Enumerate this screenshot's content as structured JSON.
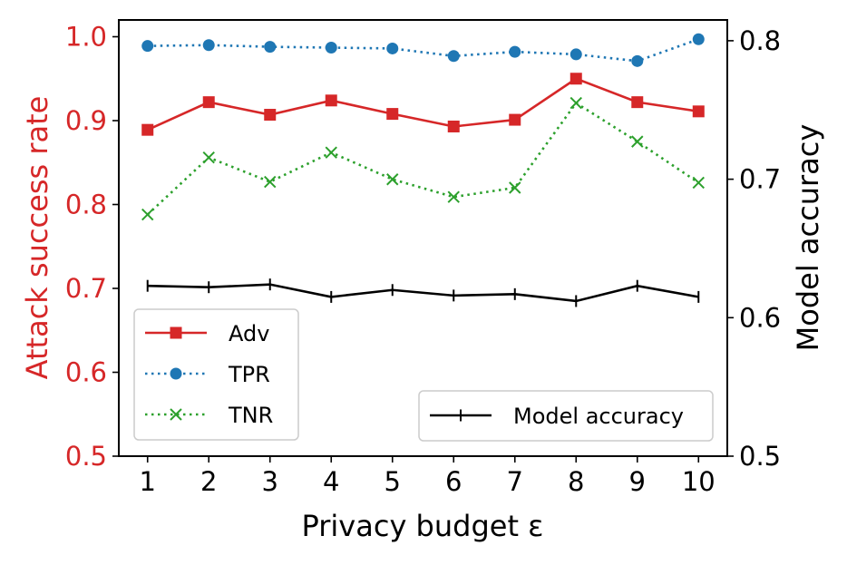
{
  "chart_data": {
    "type": "line",
    "x": [
      1,
      2,
      3,
      4,
      5,
      6,
      7,
      8,
      9,
      10
    ],
    "x_tick_labels": [
      "1",
      "2",
      "3",
      "4",
      "5",
      "6",
      "7",
      "8",
      "9",
      "10"
    ],
    "xlabel": "Privacy budget ε",
    "ylabel_left": "Attack success rate",
    "ylabel_right": "Model accuracy",
    "ylim_left": [
      0.5,
      1.02
    ],
    "ylim_right": [
      0.5,
      0.815
    ],
    "y_ticks_left": [
      "0.5",
      "0.6",
      "0.7",
      "0.8",
      "0.9",
      "1.0"
    ],
    "y_ticks_right": [
      "0.5",
      "0.6",
      "0.7",
      "0.8"
    ],
    "series_left": [
      {
        "name": "Adv",
        "color": "#d62728",
        "marker": "square",
        "linestyle": "solid",
        "values": [
          0.889,
          0.922,
          0.907,
          0.924,
          0.908,
          0.893,
          0.901,
          0.95,
          0.922,
          0.911
        ]
      },
      {
        "name": "TPR",
        "color": "#1f77b4",
        "marker": "circle",
        "linestyle": "dotted",
        "values": [
          0.989,
          0.99,
          0.988,
          0.987,
          0.986,
          0.977,
          0.982,
          0.979,
          0.971,
          0.997
        ]
      },
      {
        "name": "TNR",
        "color": "#2ca02c",
        "marker": "x",
        "linestyle": "dotted",
        "values": [
          0.788,
          0.856,
          0.827,
          0.862,
          0.83,
          0.809,
          0.82,
          0.921,
          0.875,
          0.826
        ]
      }
    ],
    "series_right": [
      {
        "name": "Model accuracy",
        "color": "#000000",
        "marker": "plus",
        "linestyle": "solid",
        "values": [
          0.623,
          0.622,
          0.624,
          0.615,
          0.62,
          0.616,
          0.617,
          0.612,
          0.623,
          0.615
        ]
      }
    ],
    "legend_left_position": "lower-left",
    "legend_right_position": "lower-right",
    "grid": false
  }
}
